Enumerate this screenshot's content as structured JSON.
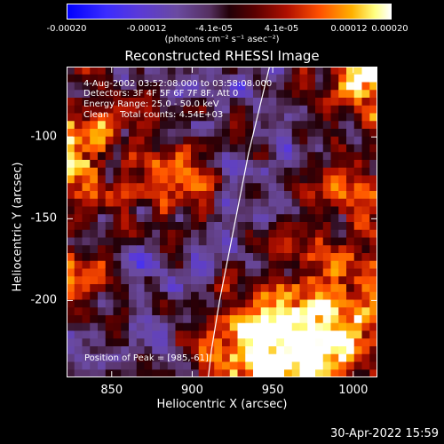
{
  "colorbar": {
    "ticks": [
      "-0.00020",
      "-0.00012",
      "-4.1e-05",
      "4.1e-05",
      "0.00012",
      "0.00020"
    ],
    "units": "(photons cm⁻² s⁻¹ asec⁻²)"
  },
  "annotations": {
    "time": "4-Aug-2002 03:52:08.000 to 03:58:08.000",
    "detectors": "Detectors: 3F 4F 5F 6F 7F 8F, Att 0",
    "energy": "Energy Range: 25.0 - 50.0 keV",
    "clean": "Clean    Total counts: 4.54E+03",
    "peak": "Position of Peak = [985,-61]"
  },
  "footer": {
    "timestamp": "30-Apr-2022 15:59"
  },
  "chart_data": {
    "type": "heatmap",
    "title": "Reconstructed RHESSI Image",
    "xlabel": "Heliocentric X (arcsec)",
    "ylabel": "Heliocentric Y (arcsec)",
    "xlim": [
      822,
      1015
    ],
    "ylim": [
      -247,
      -57
    ],
    "xticks": [
      850,
      900,
      950,
      1000
    ],
    "yticks": [
      -100,
      -150,
      -200
    ],
    "colorscale_range": [
      -0.0002,
      0.0002
    ],
    "limb_curve": [
      [
        948,
        -57
      ],
      [
        935,
        -110
      ],
      [
        925,
        -160
      ],
      [
        917,
        -200
      ],
      [
        912,
        -230
      ],
      [
        910,
        -247
      ]
    ],
    "peak_position": [
      985,
      -61
    ]
  }
}
